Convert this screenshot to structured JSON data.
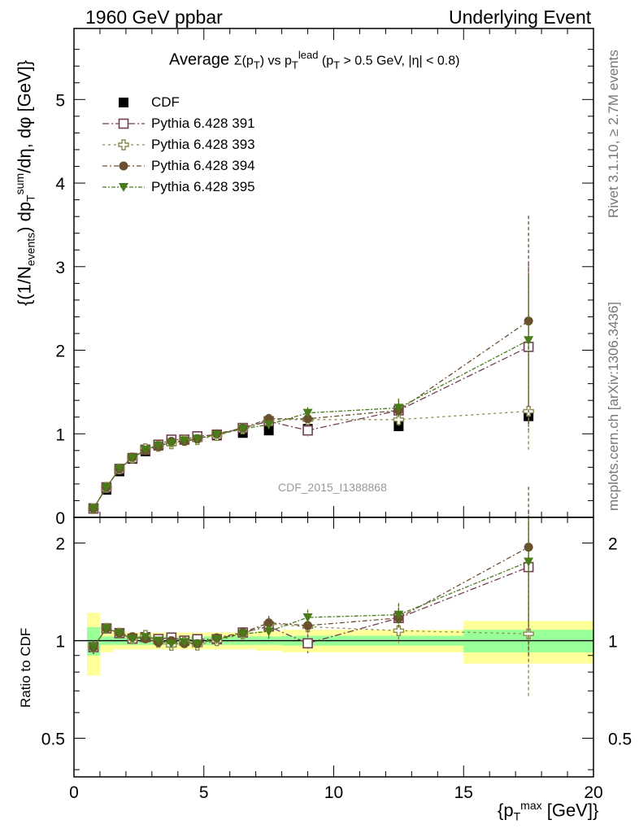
{
  "header": {
    "left": "1960 GeV ppbar",
    "right": "Underlying Event"
  },
  "side_labels": {
    "rivet": "Rivet 3.1.10, ≥ 2.7M events",
    "mcplots": "mcplots.cern.ch [arXiv:1306.3436]"
  },
  "title": {
    "prefix": "Average ",
    "sigma": "Σ(p",
    "sigma_sub": "T",
    "sigma_close": ")",
    "vs": " vs p",
    "lead_sub": "T",
    "lead_sup": "lead",
    "cuts": " (p",
    "cuts_sub": "T",
    "cuts_rest": " > 0.5 GeV, |η| < 0.8)"
  },
  "watermark": "CDF_2015_I1388868",
  "ylabel": {
    "a": "{(1/N",
    "a_sub": "events",
    "b": ") dp",
    "b_sub": "T",
    "b_sup": "sum",
    "c": "/dη, dφ [GeV]}"
  },
  "xlabel": {
    "a": "{p",
    "a_sub": "T",
    "a_sup": "max",
    "b": " [GeV]}"
  },
  "ratio_label": "Ratio to CDF",
  "legend": [
    {
      "label": "CDF",
      "color": "#000000",
      "marker": "square-filled"
    },
    {
      "label": "Pythia 6.428 391",
      "color": "#704050",
      "marker": "square-open"
    },
    {
      "label": "Pythia 6.428 393",
      "color": "#8a8a50",
      "marker": "plus-open"
    },
    {
      "label": "Pythia 6.428 394",
      "color": "#6b5030",
      "marker": "circle-filled"
    },
    {
      "label": "Pythia 6.428 395",
      "color": "#4a7a1a",
      "marker": "triangle-down"
    }
  ],
  "chart_data": {
    "type": "scatter",
    "title": "Average Σ(pT) vs pT lead (pT > 0.5 GeV, |η| < 0.8)",
    "xlabel": "{pT max [GeV]}",
    "ylabel": "{(1/N events) dpT sum/dη, dφ [GeV]}",
    "xlim": [
      0,
      20
    ],
    "ylim": [
      0,
      5.85
    ],
    "ratio_ylim": [
      0.38,
      2.4
    ],
    "x_ticks": [
      0,
      5,
      10,
      15,
      20
    ],
    "y_ticks": [
      0,
      1,
      2,
      3,
      4,
      5
    ],
    "ratio_ticks": [
      0.5,
      1,
      2
    ],
    "x": [
      0.75,
      1.25,
      1.75,
      2.25,
      2.75,
      3.25,
      3.75,
      4.25,
      4.75,
      5.5,
      6.5,
      7.5,
      9.0,
      12.5,
      17.5
    ],
    "x_low": [
      0.5,
      1.0,
      1.5,
      2.0,
      2.5,
      3.0,
      3.5,
      4.0,
      4.5,
      5.0,
      6.0,
      7.0,
      8.0,
      10.0,
      15.0
    ],
    "x_high": [
      1.0,
      1.5,
      2.0,
      2.5,
      3.0,
      3.5,
      4.0,
      4.5,
      5.0,
      6.0,
      7.0,
      8.0,
      10.0,
      15.0,
      20.0
    ],
    "data": {
      "name": "CDF",
      "values": [
        0.11,
        0.33,
        0.55,
        0.7,
        0.79,
        0.86,
        0.91,
        0.93,
        0.96,
        0.98,
        1.01,
        1.04,
        1.06,
        1.09,
        1.21
      ],
      "errors": [
        0.005,
        0.01,
        0.01,
        0.015,
        0.015,
        0.015,
        0.015,
        0.02,
        0.02,
        0.02,
        0.025,
        0.03,
        0.04,
        0.06,
        0.08
      ],
      "band_stat": [
        0.1,
        0.03,
        0.03,
        0.03,
        0.03,
        0.03,
        0.03,
        0.03,
        0.03,
        0.03,
        0.03,
        0.03,
        0.035,
        0.035,
        0.08
      ],
      "band_total": [
        0.22,
        0.08,
        0.06,
        0.06,
        0.06,
        0.06,
        0.06,
        0.06,
        0.06,
        0.06,
        0.06,
        0.07,
        0.08,
        0.08,
        0.15
      ]
    },
    "series": [
      {
        "name": "Pythia 6.428 391",
        "values": [
          0.105,
          0.36,
          0.58,
          0.71,
          0.81,
          0.87,
          0.93,
          0.93,
          0.97,
          0.99,
          1.07,
          1.15,
          1.04,
          1.28,
          2.04
        ],
        "errors": [
          0.005,
          0.01,
          0.01,
          0.01,
          0.01,
          0.015,
          0.015,
          0.015,
          0.02,
          0.02,
          0.04,
          0.06,
          0.07,
          0.14,
          1.0
        ]
      },
      {
        "name": "Pythia 6.428 393",
        "values": [
          0.105,
          0.36,
          0.58,
          0.71,
          0.82,
          0.85,
          0.88,
          0.92,
          0.93,
          0.98,
          1.06,
          1.17,
          1.17,
          1.17,
          1.27
        ],
        "errors": [
          0.005,
          0.01,
          0.01,
          0.01,
          0.01,
          0.015,
          0.015,
          0.015,
          0.02,
          0.02,
          0.04,
          0.06,
          0.07,
          0.1,
          0.46
        ]
      },
      {
        "name": "Pythia 6.428 394",
        "values": [
          0.105,
          0.36,
          0.58,
          0.72,
          0.8,
          0.85,
          0.91,
          0.91,
          0.94,
          1.0,
          1.07,
          1.18,
          1.18,
          1.28,
          2.35
        ],
        "errors": [
          0.005,
          0.01,
          0.01,
          0.01,
          0.01,
          0.015,
          0.015,
          0.015,
          0.02,
          0.02,
          0.04,
          0.06,
          0.07,
          0.1,
          1.26
        ]
      },
      {
        "name": "Pythia 6.428 395",
        "values": [
          0.105,
          0.36,
          0.58,
          0.71,
          0.81,
          0.86,
          0.89,
          0.92,
          0.94,
          0.99,
          1.06,
          1.11,
          1.25,
          1.31,
          2.12
        ],
        "errors": [
          0.005,
          0.01,
          0.01,
          0.01,
          0.01,
          0.015,
          0.015,
          0.015,
          0.02,
          0.02,
          0.04,
          0.06,
          0.07,
          0.11,
          0.76
        ]
      }
    ]
  }
}
